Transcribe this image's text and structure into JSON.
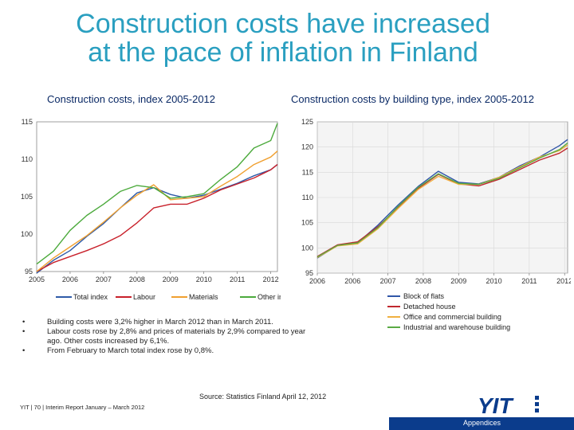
{
  "slide": {
    "title_line1": "Construction costs have increased",
    "title_line2": "at the pace of inflation in Finland",
    "left_heading": "Construction costs, index 2005-2012",
    "right_heading": "Construction costs by building type, index 2005-2012",
    "notes": [
      "Building costs were 3,2% higher in March 2012 than in March 2011.",
      "Labour costs rose by 2,8% and prices of materials by 2,9% compared to year ago. Other costs increased by 6,1%.",
      "From February to March total index rose by 0,8%."
    ],
    "bullet_char": "•",
    "source": "Source: Statistics Finland April 12, 2012",
    "footer": "YIT | 70 | Interim Report January – March 2012",
    "logo_text": "YIT",
    "appendix_label": "Appendices",
    "colors": {
      "title": "#2a9fc0",
      "heading": "#0b2a66",
      "bar": "#0b3c8c",
      "logo": "#0b3c8c"
    }
  },
  "chart_data": [
    {
      "type": "line",
      "title": "Construction costs, index 2005-2012",
      "x": [
        2005.0,
        2005.5,
        2006.0,
        2006.5,
        2007.0,
        2007.5,
        2008.0,
        2008.5,
        2009.0,
        2009.5,
        2010.0,
        2010.5,
        2011.0,
        2011.5,
        2012.0,
        2012.2
      ],
      "x_tick_labels": [
        "2005",
        "2006",
        "2007",
        "2008",
        "2009",
        "2010",
        "2011",
        "2012"
      ],
      "ylim": [
        95,
        115
      ],
      "y_ticks": [
        95,
        100,
        105,
        110,
        115
      ],
      "y_tick_labels": [
        "95",
        "100",
        "105",
        "110",
        "115"
      ],
      "series": [
        {
          "name": "Total index",
          "color": "#2f5ba8",
          "values": [
            94.8,
            96.5,
            97.8,
            99.7,
            101.4,
            103.5,
            105.5,
            106.2,
            105.3,
            104.8,
            105.2,
            106.0,
            106.8,
            107.8,
            108.6,
            109.3
          ]
        },
        {
          "name": "Labour",
          "color": "#c8202a",
          "values": [
            95.0,
            96.2,
            97.0,
            97.8,
            98.7,
            99.8,
            101.5,
            103.5,
            104.0,
            104.0,
            104.8,
            105.9,
            106.7,
            107.5,
            108.6,
            109.3
          ]
        },
        {
          "name": "Materials",
          "color": "#f0a030",
          "values": [
            95.0,
            96.8,
            98.3,
            99.8,
            101.6,
            103.5,
            105.2,
            106.6,
            104.6,
            104.8,
            105.0,
            106.4,
            107.7,
            109.3,
            110.3,
            111.1
          ]
        },
        {
          "name": "Other inputs",
          "color": "#4caa3c",
          "values": [
            96.0,
            97.7,
            100.5,
            102.5,
            104.0,
            105.7,
            106.5,
            106.2,
            104.8,
            105.0,
            105.4,
            107.3,
            109.0,
            111.5,
            112.5,
            114.8
          ]
        }
      ],
      "legend": "bottom",
      "grid": false
    },
    {
      "type": "line",
      "title": "Construction costs by building type, index 2005-2012",
      "x": [
        2006.0,
        2006.5,
        2007.0,
        2007.5,
        2008.0,
        2008.5,
        2009.0,
        2009.5,
        2010.0,
        2010.5,
        2011.0,
        2011.5,
        2012.0,
        2012.2
      ],
      "x_tick_labels": [
        "2006",
        "2006",
        "2007",
        "2008",
        "2009",
        "2010",
        "2011",
        "2012"
      ],
      "ylim": [
        95,
        125
      ],
      "y_ticks": [
        95,
        100,
        105,
        110,
        115,
        120,
        125
      ],
      "y_tick_labels": [
        "95",
        "100",
        "105",
        "110",
        "115",
        "120",
        "125"
      ],
      "series": [
        {
          "name": "Block of flats",
          "color": "#3056a8",
          "values": [
            98.0,
            100.5,
            101.0,
            104.5,
            108.5,
            112.2,
            115.2,
            113.0,
            112.7,
            114.0,
            116.2,
            118.0,
            120.3,
            121.5
          ]
        },
        {
          "name": "Detached house",
          "color": "#c0282e",
          "values": [
            98.3,
            100.6,
            101.2,
            104.2,
            108.0,
            111.8,
            114.6,
            112.7,
            112.3,
            113.6,
            115.5,
            117.4,
            118.8,
            119.8
          ]
        },
        {
          "name": "Office and commercial building",
          "color": "#f0b040",
          "values": [
            98.1,
            100.4,
            100.8,
            103.8,
            107.8,
            111.6,
            114.2,
            112.6,
            112.6,
            114.0,
            116.0,
            118.0,
            119.3,
            120.4
          ]
        },
        {
          "name": "Industrial and warehouse building",
          "color": "#5aaa44",
          "values": [
            98.2,
            100.5,
            101.0,
            104.0,
            108.2,
            112.0,
            114.7,
            112.8,
            112.6,
            113.8,
            115.8,
            117.8,
            119.5,
            120.8
          ]
        }
      ],
      "legend": "bottom-left",
      "grid": true
    }
  ]
}
